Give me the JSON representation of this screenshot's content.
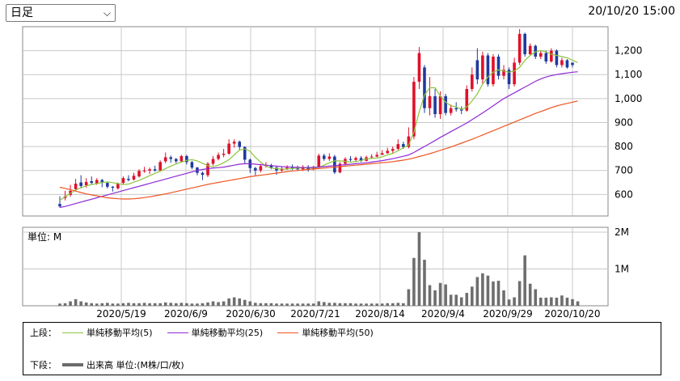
{
  "toolbar": {
    "period_label": "日足",
    "timestamp": "20/10/20 15:00"
  },
  "colors": {
    "up": "#e0102a",
    "down": "#1f3a9e",
    "ma5": "#8cc63f",
    "ma25": "#8e2ad6",
    "ma50": "#ee5522",
    "volume": "#6e6e6e",
    "grid": "#c8c8c8",
    "frame": "#888888"
  },
  "chart_data": [
    {
      "type": "candlestick",
      "panel": "upper",
      "title": "",
      "ylim": [
        510,
        1300
      ],
      "y_ticks": [
        600,
        700,
        800,
        900,
        1000,
        1100,
        1200
      ],
      "y_tick_labels": [
        "600",
        "700",
        "800",
        "900",
        "1,000",
        "1,100",
        "1,200"
      ],
      "x_tick_labels": [
        "2020/5/19",
        "2020/6/9",
        "2020/6/30",
        "2020/7/21",
        "2020/8/14",
        "2020/9/4",
        "2020/9/29",
        "2020/10/20"
      ],
      "grid": true,
      "candles": [
        [
          560,
          585,
          550,
          545,
          592
        ],
        [
          585,
          600,
          592,
          575,
          615
        ],
        [
          598,
          625,
          615,
          590,
          640
        ],
        [
          622,
          655,
          645,
          612,
          665
        ],
        [
          650,
          672,
          635,
          625,
          680
        ],
        [
          638,
          660,
          652,
          628,
          668
        ],
        [
          655,
          668,
          648,
          640,
          675
        ],
        [
          646,
          658,
          660,
          640,
          668
        ],
        [
          660,
          642,
          648,
          630,
          665
        ],
        [
          648,
          640,
          632,
          625,
          650
        ],
        [
          632,
          620,
          628,
          612,
          635
        ],
        [
          625,
          640,
          645,
          620,
          650
        ],
        [
          648,
          660,
          668,
          640,
          675
        ],
        [
          665,
          672,
          660,
          655,
          680
        ],
        [
          662,
          682,
          678,
          658,
          690
        ],
        [
          675,
          692,
          698,
          670,
          705
        ],
        [
          698,
          708,
          700,
          690,
          715
        ],
        [
          700,
          690,
          705,
          685,
          712
        ],
        [
          705,
          712,
          700,
          695,
          720
        ],
        [
          700,
          722,
          735,
          695,
          742
        ],
        [
          738,
          760,
          755,
          730,
          775
        ],
        [
          755,
          740,
          748,
          732,
          762
        ],
        [
          748,
          742,
          738,
          730,
          752
        ],
        [
          738,
          750,
          760,
          735,
          765
        ],
        [
          760,
          742,
          735,
          725,
          765
        ],
        [
          735,
          718,
          712,
          705,
          740
        ],
        [
          712,
          700,
          690,
          680,
          715
        ],
        [
          690,
          670,
          682,
          660,
          695
        ],
        [
          680,
          712,
          728,
          672,
          735
        ],
        [
          728,
          745,
          748,
          720,
          760
        ],
        [
          748,
          758,
          765,
          742,
          775
        ],
        [
          765,
          780,
          770,
          755,
          790
        ],
        [
          770,
          820,
          812,
          765,
          830
        ],
        [
          812,
          800,
          820,
          795,
          830
        ],
        [
          820,
          795,
          798,
          785,
          825
        ],
        [
          798,
          760,
          745,
          730,
          800
        ],
        [
          745,
          705,
          710,
          690,
          750
        ],
        [
          710,
          690,
          700,
          680,
          715
        ],
        [
          700,
          712,
          718,
          692,
          728
        ],
        [
          718,
          728,
          722,
          712,
          735
        ],
        [
          722,
          715,
          712,
          705,
          728
        ],
        [
          712,
          690,
          700,
          682,
          718
        ],
        [
          700,
          705,
          708,
          695,
          715
        ],
        [
          708,
          715,
          712,
          702,
          722
        ],
        [
          712,
          718,
          708,
          702,
          725
        ],
        [
          708,
          712,
          705,
          698,
          720
        ],
        [
          705,
          712,
          715,
          698,
          722
        ],
        [
          715,
          710,
          705,
          695,
          722
        ],
        [
          705,
          712,
          715,
          700,
          720
        ],
        [
          715,
          745,
          762,
          710,
          770
        ],
        [
          762,
          755,
          748,
          740,
          770
        ],
        [
          748,
          765,
          758,
          740,
          772
        ],
        [
          758,
          700,
          692,
          685,
          765
        ],
        [
          692,
          712,
          728,
          688,
          735
        ],
        [
          728,
          740,
          748,
          722,
          755
        ],
        [
          748,
          752,
          744,
          738,
          760
        ],
        [
          744,
          738,
          752,
          735,
          758
        ],
        [
          752,
          745,
          740,
          735,
          760
        ],
        [
          740,
          748,
          755,
          738,
          762
        ],
        [
          755,
          762,
          758,
          750,
          768
        ],
        [
          758,
          770,
          765,
          755,
          778
        ],
        [
          765,
          778,
          772,
          768,
          785
        ],
        [
          772,
          785,
          782,
          770,
          795
        ],
        [
          782,
          775,
          790,
          772,
          800
        ],
        [
          790,
          820,
          810,
          785,
          830
        ],
        [
          810,
          802,
          798,
          790,
          820
        ],
        [
          798,
          830,
          842,
          792,
          880
        ],
        [
          842,
          900,
          1070,
          830,
          1090
        ],
        [
          1070,
          1150,
          1190,
          1040,
          1215
        ],
        [
          1130,
          1010,
          960,
          940,
          1140
        ],
        [
          960,
          1040,
          1010,
          930,
          1090
        ],
        [
          1010,
          980,
          935,
          920,
          1040
        ],
        [
          935,
          960,
          1010,
          915,
          1030
        ],
        [
          1010,
          1000,
          940,
          930,
          1020
        ],
        [
          940,
          945,
          960,
          930,
          975
        ],
        [
          960,
          970,
          955,
          945,
          985
        ],
        [
          955,
          940,
          950,
          935,
          968
        ],
        [
          950,
          1000,
          1040,
          945,
          1055
        ],
        [
          1040,
          1080,
          1100,
          1030,
          1130
        ],
        [
          1160,
          1140,
          1080,
          1060,
          1210
        ],
        [
          1080,
          1160,
          1180,
          1060,
          1195
        ],
        [
          1180,
          1100,
          1060,
          1050,
          1190
        ],
        [
          1060,
          1120,
          1175,
          1050,
          1185
        ],
        [
          1175,
          1120,
          1095,
          1080,
          1185
        ],
        [
          1095,
          1110,
          1120,
          1080,
          1140
        ],
        [
          1120,
          1090,
          1060,
          1040,
          1130
        ],
        [
          1060,
          1150,
          1150,
          1050,
          1170
        ],
        [
          1150,
          1250,
          1270,
          1140,
          1290
        ],
        [
          1270,
          1220,
          1185,
          1175,
          1275
        ],
        [
          1185,
          1210,
          1220,
          1180,
          1230
        ],
        [
          1220,
          1195,
          1175,
          1165,
          1225
        ],
        [
          1175,
          1180,
          1190,
          1165,
          1200
        ],
        [
          1190,
          1170,
          1155,
          1145,
          1200
        ],
        [
          1155,
          1185,
          1200,
          1150,
          1210
        ],
        [
          1200,
          1160,
          1140,
          1130,
          1205
        ],
        [
          1140,
          1150,
          1160,
          1130,
          1170
        ],
        [
          1160,
          1150,
          1130,
          1125,
          1165
        ],
        [
          1150,
          1145,
          1140,
          1130,
          1150
        ]
      ],
      "candle_note": "each candle: [open, (unused), close, low, high] in JPY",
      "series": [
        {
          "label": "単純移動平均(5)",
          "color_key": "ma5",
          "values": [
            575,
            590,
            605,
            618,
            628,
            636,
            641,
            645,
            650,
            652,
            649,
            645,
            641,
            643,
            651,
            659,
            668,
            678,
            688,
            697,
            708,
            718,
            727,
            735,
            742,
            745,
            740,
            730,
            720,
            715,
            722,
            732,
            745,
            765,
            785,
            790,
            780,
            755,
            735,
            718,
            710,
            708,
            705,
            706,
            708,
            710,
            711,
            711,
            711,
            713,
            722,
            732,
            740,
            740,
            738,
            735,
            737,
            742,
            748,
            750,
            752,
            757,
            765,
            771,
            782,
            795,
            806,
            860,
            945,
            1015,
            1045,
            1045,
            1010,
            985,
            970,
            965,
            955,
            965,
            990,
            1020,
            1060,
            1090,
            1110,
            1120,
            1115,
            1110,
            1115,
            1130,
            1160,
            1180,
            1195,
            1200,
            1195,
            1185,
            1180,
            1175,
            1170,
            1160,
            1150
          ]
        },
        {
          "label": "単純移動平均(25)",
          "color_key": "ma25",
          "values": [
            545,
            550,
            556,
            562,
            568,
            574,
            580,
            586,
            592,
            598,
            604,
            610,
            616,
            622,
            628,
            634,
            640,
            646,
            652,
            658,
            664,
            670,
            676,
            682,
            688,
            694,
            700,
            704,
            708,
            710,
            712,
            714,
            718,
            722,
            726,
            728,
            728,
            726,
            724,
            722,
            720,
            718,
            716,
            715,
            714,
            713,
            712,
            712,
            713,
            714,
            716,
            718,
            720,
            722,
            724,
            726,
            728,
            730,
            732,
            735,
            738,
            741,
            745,
            749,
            754,
            759,
            765,
            775,
            788,
            800,
            812,
            825,
            838,
            850,
            862,
            874,
            886,
            898,
            912,
            926,
            940,
            955,
            970,
            985,
            1000,
            1012,
            1024,
            1036,
            1048,
            1060,
            1072,
            1082,
            1090,
            1096,
            1100,
            1104,
            1107,
            1110,
            1112
          ]
        },
        {
          "label": "単純移動平均(50)",
          "color_key": "ma50",
          "values": [
            630,
            625,
            620,
            614,
            608,
            602,
            598,
            594,
            590,
            586,
            584,
            582,
            581,
            581,
            582,
            584,
            587,
            590,
            594,
            598,
            602,
            607,
            612,
            617,
            622,
            627,
            632,
            637,
            642,
            646,
            650,
            654,
            658,
            662,
            666,
            670,
            674,
            677,
            680,
            683,
            686,
            689,
            692,
            695,
            698,
            700,
            702,
            704,
            706,
            708,
            710,
            712,
            714,
            716,
            718,
            720,
            722,
            724,
            726,
            728,
            730,
            732,
            734,
            737,
            740,
            743,
            747,
            752,
            758,
            764,
            770,
            777,
            784,
            791,
            798,
            806,
            814,
            822,
            830,
            839,
            848,
            857,
            866,
            875,
            884,
            893,
            902,
            911,
            920,
            929,
            938,
            946,
            954,
            962,
            969,
            975,
            980,
            985,
            990
          ]
        }
      ]
    },
    {
      "type": "bar",
      "panel": "lower",
      "title": "",
      "unit_label": "単位: M",
      "ylim": [
        0,
        2000000
      ],
      "y_ticks": [
        1000000,
        2000000
      ],
      "y_tick_labels": [
        "1M",
        "2M"
      ],
      "series": [
        {
          "label": "出来高",
          "color_key": "volume",
          "values": [
            60000,
            70000,
            120000,
            180000,
            120000,
            90000,
            70000,
            60000,
            70000,
            80000,
            60000,
            60000,
            70000,
            80000,
            70000,
            70000,
            80000,
            70000,
            70000,
            70000,
            90000,
            80000,
            70000,
            80000,
            70000,
            60000,
            60000,
            70000,
            90000,
            120000,
            100000,
            120000,
            200000,
            230000,
            200000,
            160000,
            120000,
            80000,
            70000,
            70000,
            70000,
            60000,
            60000,
            60000,
            60000,
            60000,
            60000,
            60000,
            60000,
            120000,
            100000,
            80000,
            80000,
            70000,
            70000,
            70000,
            60000,
            60000,
            60000,
            60000,
            60000,
            60000,
            70000,
            70000,
            80000,
            70000,
            450000,
            1300000,
            2000000,
            1250000,
            560000,
            420000,
            620000,
            580000,
            300000,
            300000,
            230000,
            350000,
            520000,
            780000,
            880000,
            820000,
            660000,
            680000,
            420000,
            170000,
            230000,
            670000,
            1370000,
            600000,
            450000,
            220000,
            220000,
            230000,
            220000,
            280000,
            220000,
            180000,
            120000
          ]
        }
      ]
    }
  ],
  "legend": {
    "upper_label": "上段：",
    "lower_label": "下段：",
    "items": [
      {
        "label": "単純移動平均(5)",
        "color_key": "ma5"
      },
      {
        "label": "単純移動平均(25)",
        "color_key": "ma25"
      },
      {
        "label": "単純移動平均(50)",
        "color_key": "ma50"
      }
    ],
    "volume_label": "出来高 単位:(M株/口/枚)"
  }
}
